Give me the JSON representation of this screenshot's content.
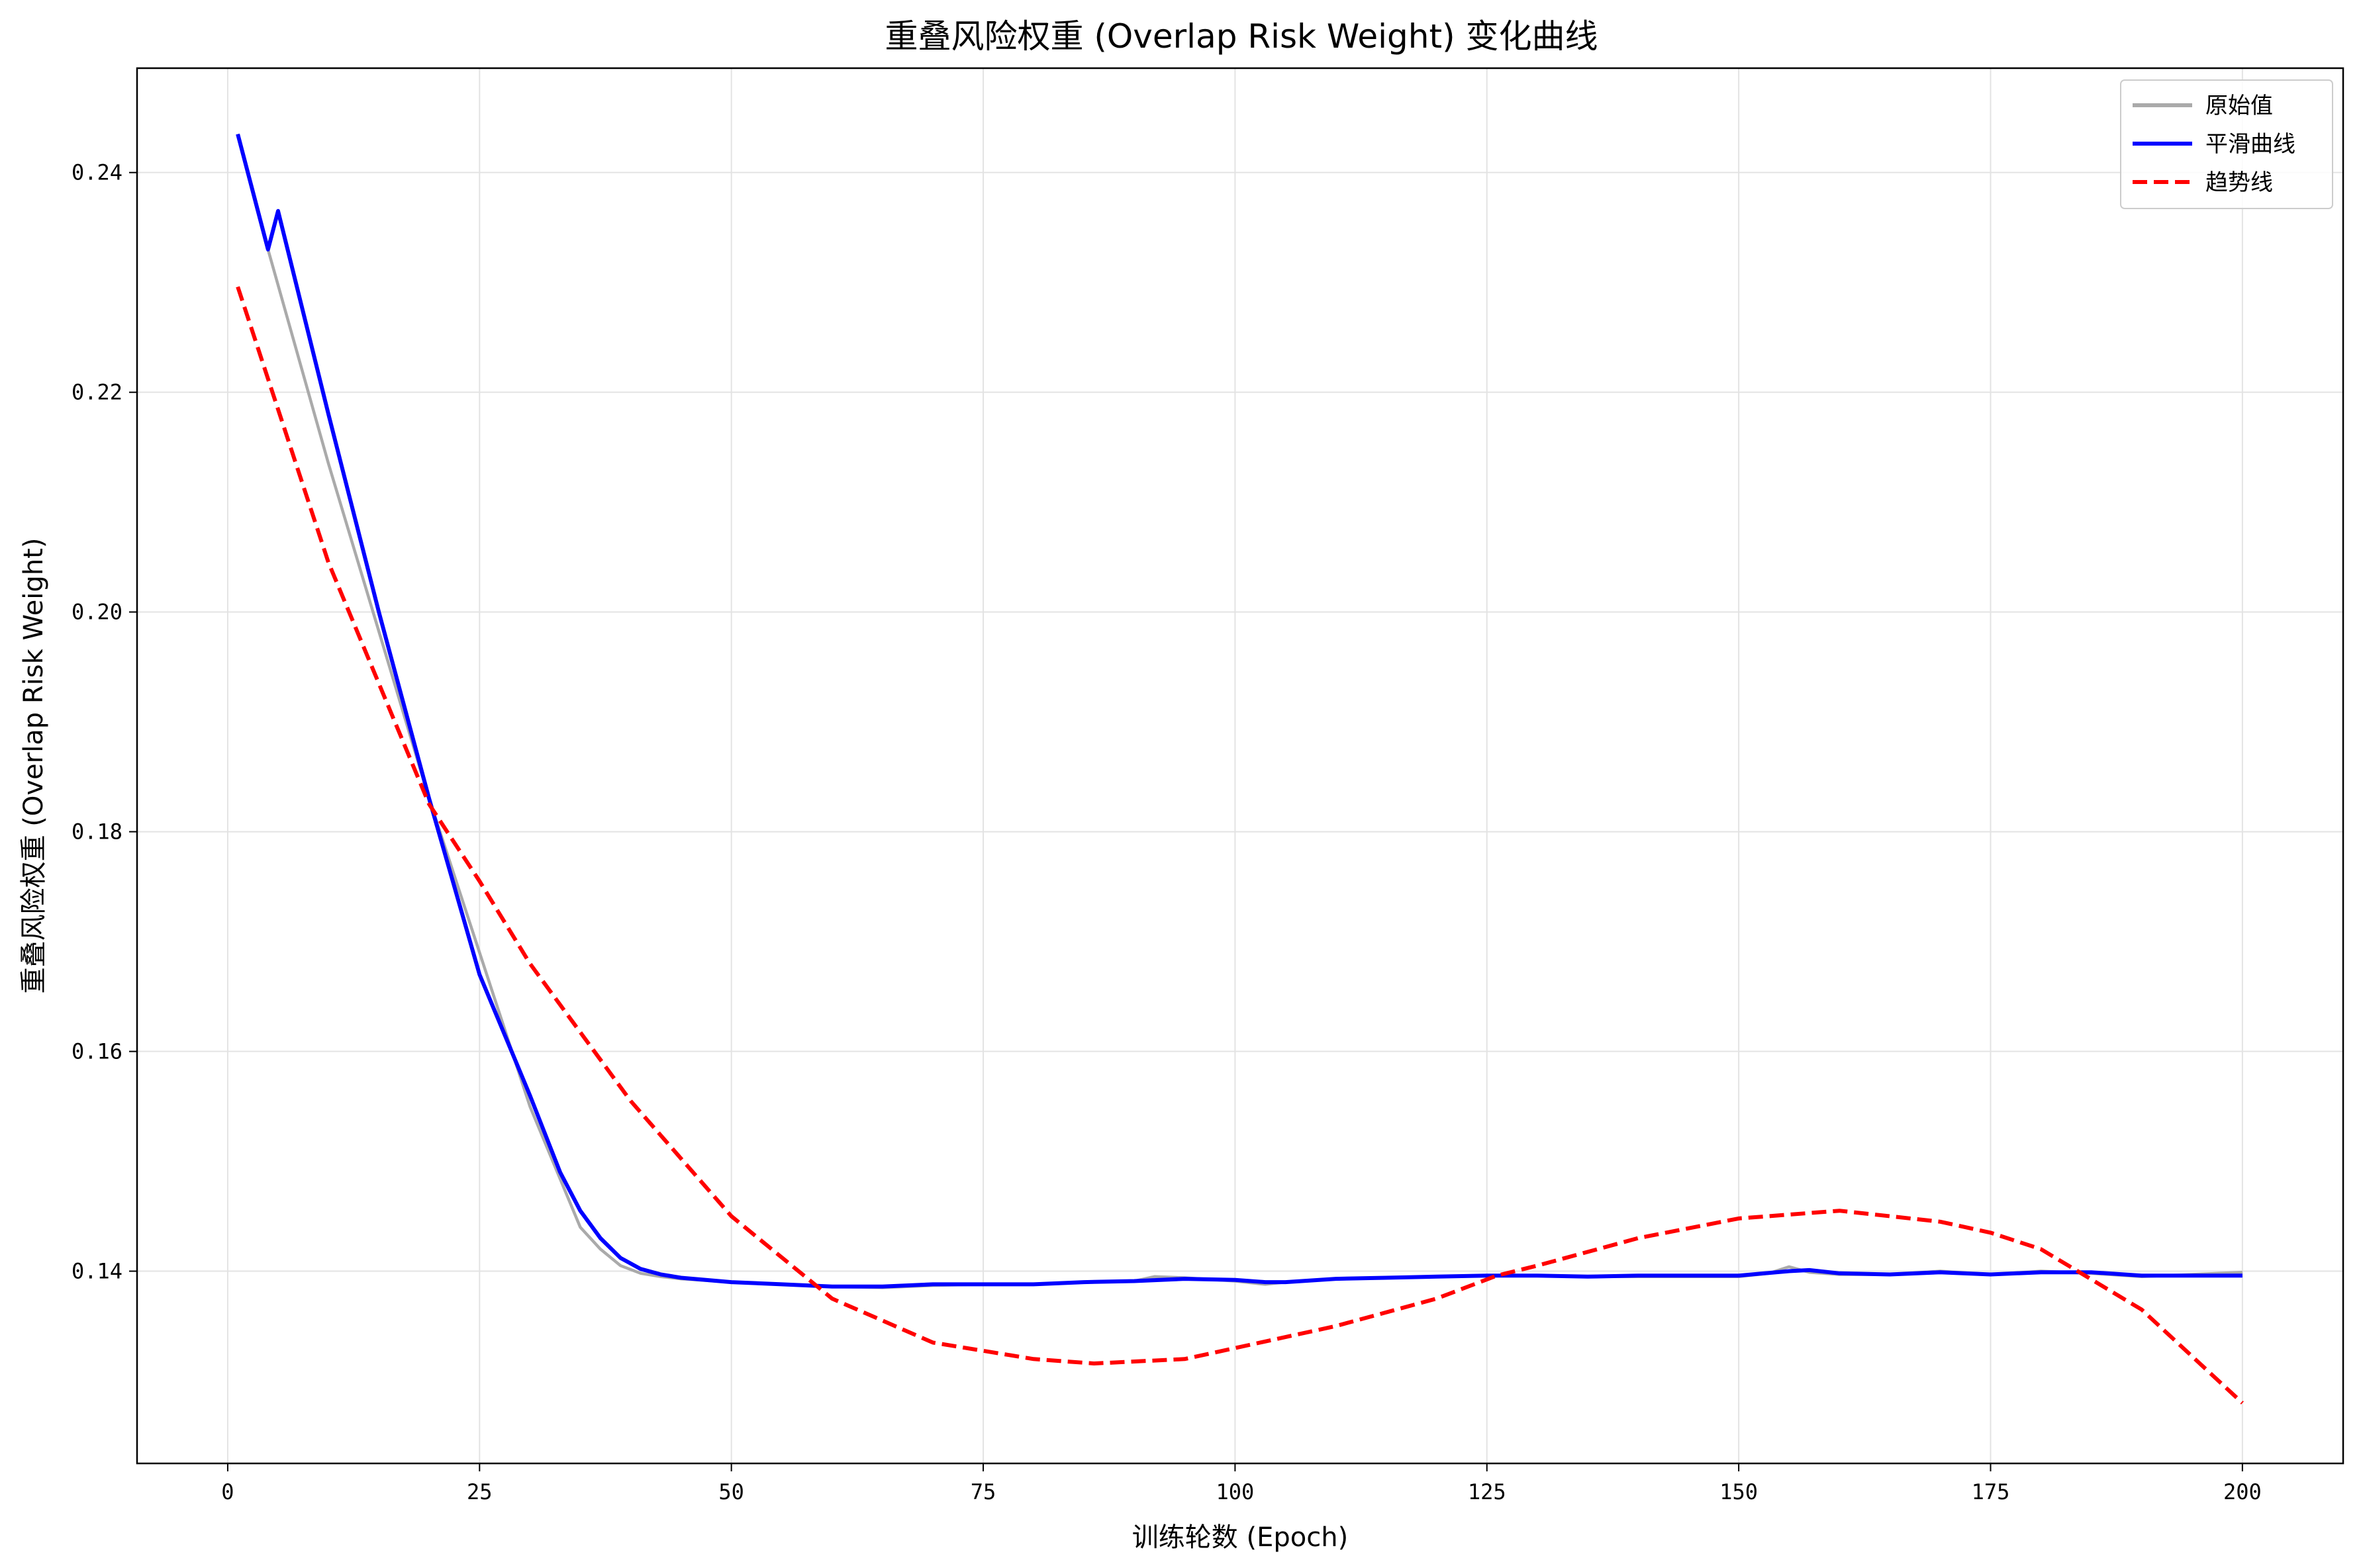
{
  "chart_data": {
    "type": "line",
    "title": "重叠风险权重 (Overlap Risk Weight) 变化曲线",
    "xlabel": "训练轮数 (Epoch)",
    "ylabel": "重叠风险权重 (Overlap Risk Weight)",
    "xlim": [
      -9,
      210
    ],
    "ylim": [
      0.1225,
      0.2495
    ],
    "xticks": [
      0,
      25,
      50,
      75,
      100,
      125,
      150,
      175,
      200
    ],
    "yticks": [
      0.14,
      0.16,
      0.18,
      0.2,
      0.22,
      0.24
    ],
    "ytick_labels": [
      "0.14",
      "0.16",
      "0.18",
      "0.20",
      "0.22",
      "0.24"
    ],
    "grid": true,
    "legend_position": "top-right",
    "series": [
      {
        "name": "原始值",
        "color": "#aaaaaa",
        "style": "solid",
        "x": [
          1,
          4,
          10,
          20,
          30,
          35,
          37,
          39,
          41,
          43,
          45,
          50,
          55,
          60,
          65,
          70,
          75,
          80,
          85,
          90,
          92,
          95,
          100,
          103,
          105,
          110,
          115,
          120,
          125,
          130,
          135,
          140,
          145,
          150,
          153,
          155,
          157,
          160,
          165,
          170,
          175,
          180,
          185,
          190,
          195,
          200
        ],
        "y": [
          0.2435,
          0.233,
          0.2135,
          0.183,
          0.155,
          0.144,
          0.142,
          0.1405,
          0.1398,
          0.1395,
          0.1393,
          0.139,
          0.1388,
          0.1386,
          0.1385,
          0.1387,
          0.1388,
          0.1388,
          0.139,
          0.1391,
          0.1395,
          0.1394,
          0.1391,
          0.1388,
          0.139,
          0.1393,
          0.1394,
          0.1395,
          0.1396,
          0.1396,
          0.1395,
          0.1395,
          0.1395,
          0.1395,
          0.1398,
          0.1404,
          0.1399,
          0.1397,
          0.1397,
          0.14,
          0.1397,
          0.14,
          0.1398,
          0.1395,
          0.1397,
          0.1399
        ]
      },
      {
        "name": "平滑曲线",
        "color": "#0000ff",
        "style": "solid",
        "x": [
          1,
          4,
          5,
          10,
          15,
          20,
          25,
          30,
          33,
          35,
          37,
          39,
          41,
          43,
          45,
          50,
          55,
          60,
          65,
          70,
          75,
          80,
          85,
          90,
          95,
          100,
          103,
          105,
          110,
          115,
          120,
          125,
          130,
          135,
          140,
          145,
          150,
          155,
          157,
          160,
          165,
          170,
          175,
          180,
          185,
          190,
          195,
          200
        ],
        "y": [
          0.2435,
          0.233,
          0.2365,
          0.218,
          0.2,
          0.183,
          0.167,
          0.156,
          0.149,
          0.1455,
          0.143,
          0.1412,
          0.1402,
          0.1397,
          0.1394,
          0.139,
          0.1388,
          0.1386,
          0.1386,
          0.1388,
          0.1388,
          0.1388,
          0.139,
          0.1391,
          0.1393,
          0.1392,
          0.139,
          0.139,
          0.1393,
          0.1394,
          0.1395,
          0.1396,
          0.1396,
          0.1395,
          0.1396,
          0.1396,
          0.1396,
          0.14,
          0.1401,
          0.1398,
          0.1397,
          0.1399,
          0.1397,
          0.1399,
          0.1399,
          0.1396,
          0.1396,
          0.1396
        ]
      },
      {
        "name": "趋势线",
        "color": "#ff0000",
        "style": "dashed",
        "x": [
          1,
          10,
          20,
          25,
          30,
          40,
          50,
          60,
          70,
          80,
          86,
          95,
          100,
          110,
          120,
          126,
          130,
          140,
          150,
          160,
          170,
          175,
          180,
          190,
          200
        ],
        "y": [
          0.2296,
          0.2045,
          0.1825,
          0.1755,
          0.168,
          0.1555,
          0.145,
          0.1375,
          0.1335,
          0.132,
          0.1316,
          0.132,
          0.133,
          0.135,
          0.1375,
          0.1396,
          0.1405,
          0.143,
          0.1448,
          0.1455,
          0.1445,
          0.1435,
          0.142,
          0.1365,
          0.128
        ]
      }
    ]
  }
}
